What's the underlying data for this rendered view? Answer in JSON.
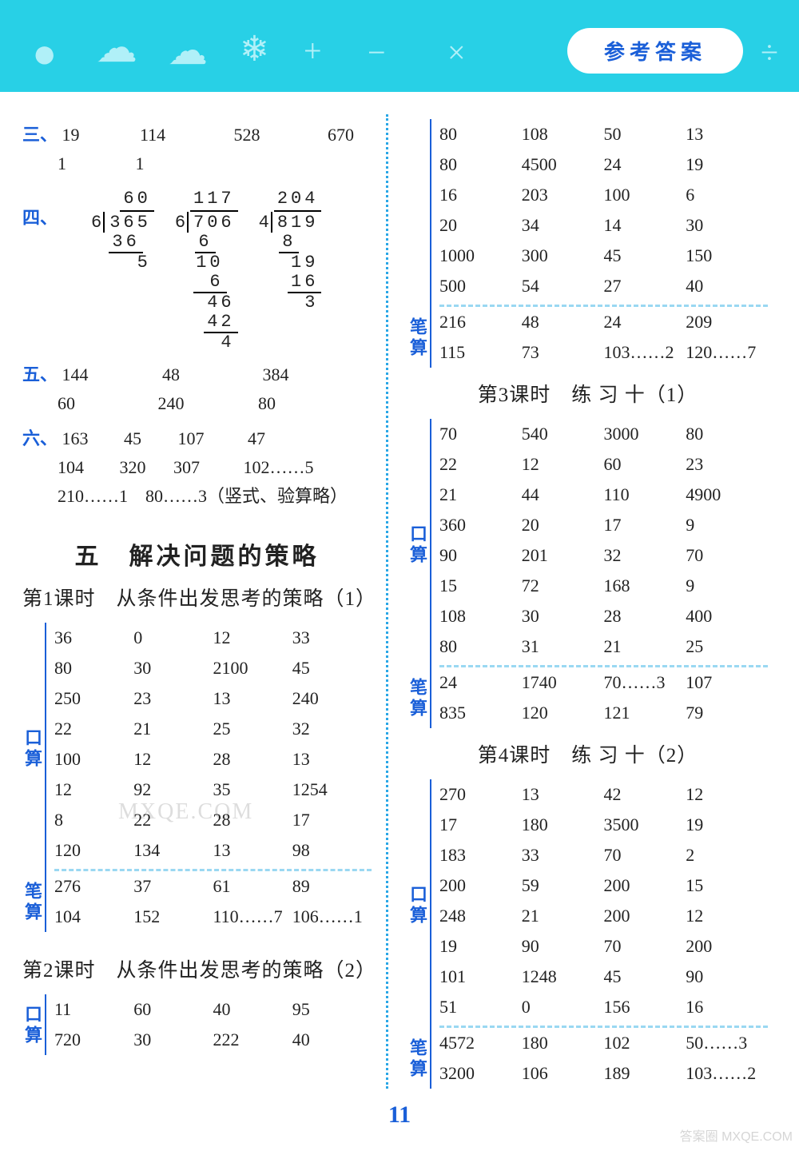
{
  "header": {
    "pill": "参考答案"
  },
  "left": {
    "san": {
      "label": "三、",
      "r1": [
        "19",
        "114",
        "528",
        "670"
      ],
      "r2": [
        "1",
        "1"
      ]
    },
    "si": {
      "label": "四、",
      "d1": {
        "q": "60",
        "dvs": "6",
        "dvd": "365",
        "s1": "36",
        "r": "5"
      },
      "d2": {
        "q": "117",
        "dvs": "6",
        "dvd": "706",
        "s1": "6",
        "p1": "10",
        "s2": "6",
        "p2": "46",
        "s3": "42",
        "r": "4"
      },
      "d3": {
        "q": "204",
        "dvs": "4",
        "dvd": "819",
        "s1": "8",
        "p1": "19",
        "s2": "16",
        "r": "3"
      }
    },
    "wu": {
      "label": "五、",
      "r1": [
        "144",
        "48",
        "384"
      ],
      "r2": [
        "60",
        "240",
        "80"
      ]
    },
    "liu": {
      "label": "六、",
      "r1": [
        "163",
        "45",
        "107",
        "47"
      ],
      "r2": [
        "104",
        "320",
        "307",
        "102……5"
      ],
      "r3": "210……1　80……3（竖式、验算略）"
    },
    "unit": "五　解决问题的策略",
    "lesson1": "第1课时　从条件出发思考的策略（1）",
    "kou1": {
      "label": "口算",
      "rows": [
        [
          "36",
          "0",
          "12",
          "33"
        ],
        [
          "80",
          "30",
          "2100",
          "45"
        ],
        [
          "250",
          "23",
          "13",
          "240"
        ],
        [
          "22",
          "21",
          "25",
          "32"
        ],
        [
          "100",
          "12",
          "28",
          "13"
        ],
        [
          "12",
          "92",
          "35",
          "1254"
        ],
        [
          "8",
          "22",
          "28",
          "17"
        ],
        [
          "120",
          "134",
          "13",
          "98"
        ]
      ]
    },
    "bi1": {
      "label": "笔算",
      "rows": [
        [
          "276",
          "37",
          "61",
          "89"
        ],
        [
          "104",
          "152",
          "110……7",
          "106……1"
        ]
      ]
    },
    "lesson2": "第2课时　从条件出发思考的策略（2）",
    "kou2": {
      "label": "口算",
      "rows": [
        [
          "11",
          "60",
          "40",
          "95"
        ],
        [
          "720",
          "30",
          "222",
          "40"
        ]
      ]
    }
  },
  "right": {
    "kouTop": {
      "rows": [
        [
          "80",
          "108",
          "50",
          "13"
        ],
        [
          "80",
          "4500",
          "24",
          "19"
        ],
        [
          "16",
          "203",
          "100",
          "6"
        ],
        [
          "20",
          "34",
          "14",
          "30"
        ],
        [
          "1000",
          "300",
          "45",
          "150"
        ],
        [
          "500",
          "54",
          "27",
          "40"
        ]
      ]
    },
    "biTop": {
      "label": "笔算",
      "rows": [
        [
          "216",
          "48",
          "24",
          "209"
        ],
        [
          "115",
          "73",
          "103……2",
          "120……7"
        ]
      ]
    },
    "lesson3": "第3课时　练 习 十（1）",
    "kou3": {
      "label": "口算",
      "rows": [
        [
          "70",
          "540",
          "3000",
          "80"
        ],
        [
          "22",
          "12",
          "60",
          "23"
        ],
        [
          "21",
          "44",
          "110",
          "4900"
        ],
        [
          "360",
          "20",
          "17",
          "9"
        ],
        [
          "90",
          "201",
          "32",
          "70"
        ],
        [
          "15",
          "72",
          "168",
          "9"
        ],
        [
          "108",
          "30",
          "28",
          "400"
        ],
        [
          "80",
          "31",
          "21",
          "25"
        ]
      ]
    },
    "bi3": {
      "label": "笔算",
      "rows": [
        [
          "24",
          "1740",
          "70……3",
          "107"
        ],
        [
          "835",
          "120",
          "121",
          "79"
        ]
      ]
    },
    "lesson4": "第4课时　练 习 十（2）",
    "kou4": {
      "label": "口算",
      "rows": [
        [
          "270",
          "13",
          "42",
          "12"
        ],
        [
          "17",
          "180",
          "3500",
          "19"
        ],
        [
          "183",
          "33",
          "70",
          "2"
        ],
        [
          "200",
          "59",
          "200",
          "15"
        ],
        [
          "248",
          "21",
          "200",
          "12"
        ],
        [
          "19",
          "90",
          "70",
          "200"
        ],
        [
          "101",
          "1248",
          "45",
          "90"
        ],
        [
          "51",
          "0",
          "156",
          "16"
        ]
      ]
    },
    "bi4": {
      "label": "笔算",
      "rows": [
        [
          "4572",
          "180",
          "102",
          "50……3"
        ],
        [
          "3200",
          "106",
          "189",
          "103……2"
        ]
      ]
    }
  },
  "pagenum": "11",
  "watermark1": "MXQE.COM",
  "watermark2": "答案圈\nMXQE.COM"
}
